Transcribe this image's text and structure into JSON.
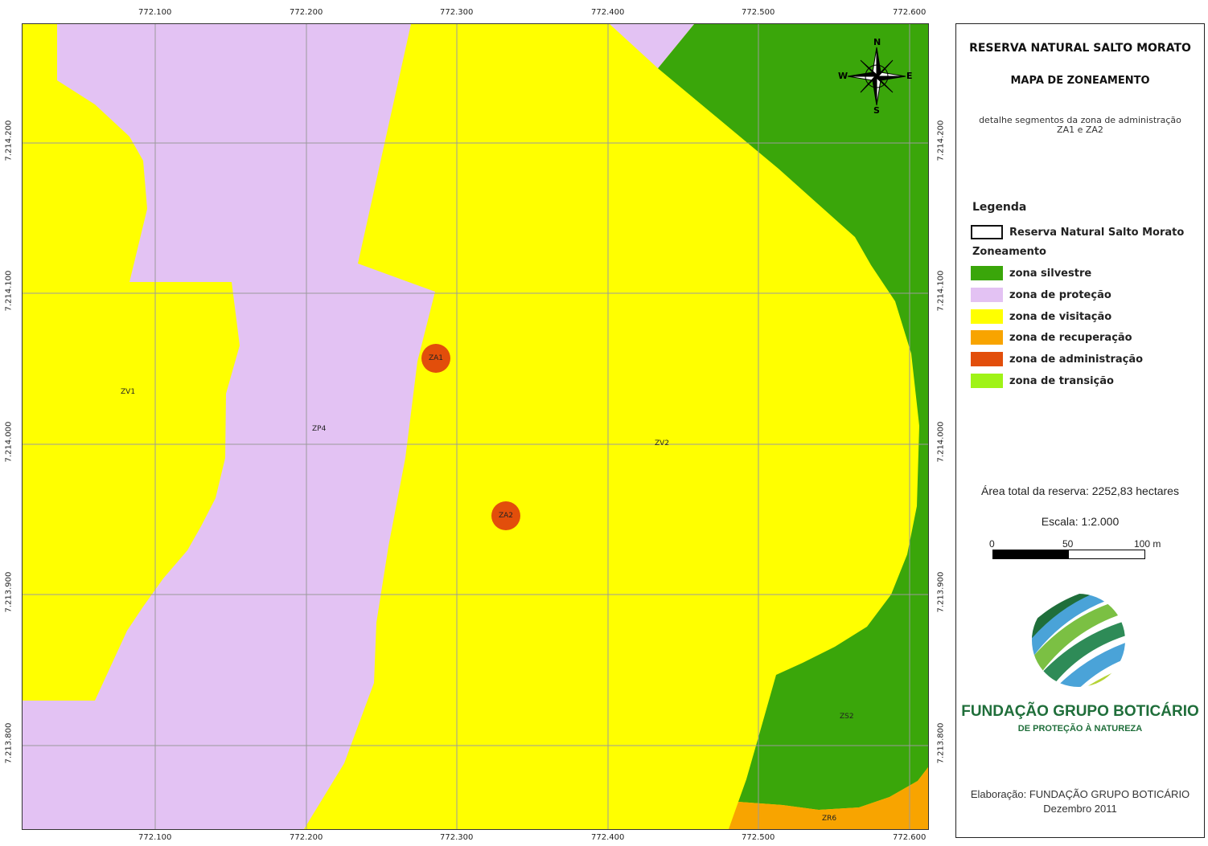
{
  "map": {
    "x_ticks": [
      "772.100",
      "772.200",
      "772.300",
      "772.400",
      "772.500",
      "772.600"
    ],
    "y_ticks": [
      "7.214.200",
      "7.214.100",
      "7.214.000",
      "7.213.900",
      "7.213.800"
    ],
    "zone_labels": {
      "zv1": "ZV1",
      "zp4": "ZP4",
      "zv2": "ZV2",
      "zs2": "ZS2",
      "zr6": "ZR6"
    },
    "admin_points": [
      {
        "label": "ZA1"
      },
      {
        "label": "ZA2"
      }
    ],
    "compass": {
      "n": "N",
      "s": "S",
      "e": "E",
      "w": "W"
    },
    "colors": {
      "zona_silvestre": "#3aa60a",
      "zona_protecao": "#e3c2f3",
      "zona_visitacao": "#ffff00",
      "zona_recuperacao": "#f8a400",
      "zona_administracao": "#e24e0b",
      "zona_transicao": "#9ff317"
    }
  },
  "panel": {
    "title": "RESERVA NATURAL SALTO MORATO",
    "subtitle": "MAPA DE ZONEAMENTO",
    "detail_line1": "detalhe segmentos da zona de administração",
    "detail_line2": "ZA1 e ZA2",
    "legend": {
      "title": "Legenda",
      "boundary_label": "Reserva Natural Salto Morato",
      "group_label": "Zoneamento",
      "items": [
        {
          "label": "zona silvestre",
          "color": "#3aa60a"
        },
        {
          "label": "zona de proteção",
          "color": "#e3c2f3"
        },
        {
          "label": "zona de visitação",
          "color": "#ffff00"
        },
        {
          "label": "zona de recuperação",
          "color": "#f8a400"
        },
        {
          "label": "zona de administração",
          "color": "#e24e0b"
        },
        {
          "label": "zona de transição",
          "color": "#9ff317"
        }
      ]
    },
    "area_text": "Área total da reserva: 2252,83 hectares",
    "scale_text": "Escala:   1:2.000",
    "scale_ticks": [
      "0",
      "50",
      "100 m"
    ],
    "logo_name": "FUNDAÇÃO GRUPO BOTICÁRIO",
    "logo_tagline": "DE PROTEÇÃO À NATUREZA",
    "footer_line1": "Elaboração: FUNDAÇÃO GRUPO BOTICÁRIO",
    "footer_line2": "Dezembro 2011"
  }
}
